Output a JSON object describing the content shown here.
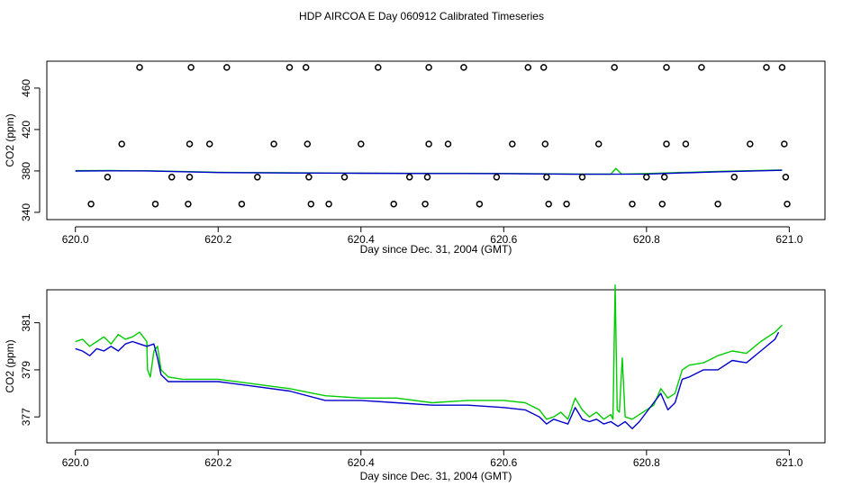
{
  "title": "HDP AIRCOA E  Day 060912  Calibrated Timeseries",
  "colors": {
    "green": "#00cc00",
    "blue": "#0000cc",
    "axis": "#000000",
    "points": "#000000"
  },
  "chart_data": [
    {
      "type": "scatter",
      "xlabel": "Day since Dec. 31, 2004 (GMT)",
      "ylabel": "CO2 (ppm)",
      "xlim": [
        619.96,
        621.05
      ],
      "ylim": [
        333,
        486
      ],
      "xticks": [
        "620.0",
        "620.2",
        "620.4",
        "620.6",
        "620.8",
        "621.0"
      ],
      "yticks": [
        "340",
        "380",
        "420",
        "460"
      ],
      "xtick_values": [
        620.0,
        620.2,
        620.4,
        620.6,
        620.8,
        621.0
      ],
      "ytick_values": [
        340,
        380,
        420,
        460
      ],
      "calibration_points": [
        [
          620.09,
          480
        ],
        [
          620.162,
          480
        ],
        [
          620.212,
          480
        ],
        [
          620.3,
          480
        ],
        [
          620.323,
          480
        ],
        [
          620.424,
          480
        ],
        [
          620.495,
          480
        ],
        [
          620.544,
          480
        ],
        [
          620.634,
          480
        ],
        [
          620.656,
          480
        ],
        [
          620.755,
          480
        ],
        [
          620.828,
          480
        ],
        [
          620.877,
          480
        ],
        [
          620.968,
          480
        ],
        [
          620.99,
          480
        ],
        [
          620.065,
          406
        ],
        [
          620.16,
          406
        ],
        [
          620.188,
          406
        ],
        [
          620.278,
          406
        ],
        [
          620.325,
          406
        ],
        [
          620.4,
          406
        ],
        [
          620.495,
          406
        ],
        [
          620.522,
          406
        ],
        [
          620.612,
          406
        ],
        [
          620.658,
          406
        ],
        [
          620.733,
          406
        ],
        [
          620.828,
          406
        ],
        [
          620.855,
          406
        ],
        [
          620.945,
          406
        ],
        [
          620.993,
          406
        ],
        [
          620.045,
          374
        ],
        [
          620.135,
          374
        ],
        [
          620.16,
          374
        ],
        [
          620.255,
          374
        ],
        [
          620.327,
          374
        ],
        [
          620.377,
          374
        ],
        [
          620.468,
          374
        ],
        [
          620.493,
          374
        ],
        [
          620.59,
          374
        ],
        [
          620.66,
          374
        ],
        [
          620.71,
          374
        ],
        [
          620.8,
          374
        ],
        [
          620.825,
          374
        ],
        [
          620.923,
          374
        ],
        [
          620.995,
          374
        ],
        [
          620.022,
          348
        ],
        [
          620.112,
          348
        ],
        [
          620.158,
          348
        ],
        [
          620.233,
          348
        ],
        [
          620.33,
          348
        ],
        [
          620.355,
          348
        ],
        [
          620.446,
          348
        ],
        [
          620.49,
          348
        ],
        [
          620.566,
          348
        ],
        [
          620.663,
          348
        ],
        [
          620.688,
          348
        ],
        [
          620.78,
          348
        ],
        [
          620.822,
          348
        ],
        [
          620.9,
          348
        ],
        [
          620.997,
          348
        ]
      ],
      "series": [
        {
          "color": "green",
          "x": [
            620.0,
            620.05,
            620.1,
            620.2,
            620.3,
            620.4,
            620.5,
            620.6,
            620.7,
            620.75,
            620.757,
            620.765,
            620.8,
            620.9,
            620.99
          ],
          "y": [
            380.3,
            380.4,
            380.2,
            378.6,
            378.2,
            377.9,
            377.7,
            377.6,
            377.0,
            376.9,
            382.5,
            377.0,
            377.5,
            379.5,
            381.0
          ]
        },
        {
          "color": "blue",
          "x": [
            620.0,
            620.05,
            620.1,
            620.2,
            620.3,
            620.4,
            620.5,
            620.6,
            620.7,
            620.8,
            620.9,
            620.99
          ],
          "y": [
            379.9,
            380.1,
            380.0,
            378.5,
            378.0,
            377.8,
            377.5,
            377.4,
            376.8,
            377.0,
            379.2,
            380.6
          ]
        }
      ]
    },
    {
      "type": "line",
      "xlabel": "Day since Dec. 31, 2004 (GMT)",
      "ylabel": "CO2 (ppm)",
      "xlim": [
        619.96,
        621.05
      ],
      "ylim": [
        375.9,
        382.4
      ],
      "xticks": [
        "620.0",
        "620.2",
        "620.4",
        "620.6",
        "620.8",
        "621.0"
      ],
      "yticks": [
        "377",
        "379",
        "381"
      ],
      "xtick_values": [
        620.0,
        620.2,
        620.4,
        620.6,
        620.8,
        621.0
      ],
      "ytick_values": [
        377,
        379,
        381
      ],
      "series": [
        {
          "color": "green",
          "x": [
            620.0,
            620.01,
            620.02,
            620.03,
            620.04,
            620.05,
            620.06,
            620.07,
            620.08,
            620.09,
            620.1,
            620.101,
            620.105,
            620.11,
            620.115,
            620.12,
            620.13,
            620.15,
            620.2,
            620.25,
            620.3,
            620.35,
            620.4,
            620.45,
            620.5,
            620.55,
            620.6,
            620.63,
            620.65,
            620.66,
            620.67,
            620.68,
            620.69,
            620.7,
            620.71,
            620.72,
            620.73,
            620.74,
            620.75,
            620.753,
            620.756,
            620.759,
            620.762,
            620.766,
            620.77,
            620.78,
            620.79,
            620.8,
            620.81,
            620.82,
            620.83,
            620.84,
            620.85,
            620.86,
            620.88,
            620.9,
            620.92,
            620.94,
            620.96,
            620.98,
            620.99
          ],
          "y": [
            380.2,
            380.3,
            380.0,
            380.2,
            380.4,
            380.1,
            380.5,
            380.3,
            380.4,
            380.6,
            380.2,
            379.0,
            378.7,
            379.8,
            380.0,
            379.0,
            378.7,
            378.6,
            378.6,
            378.4,
            378.2,
            377.9,
            377.8,
            377.8,
            377.6,
            377.7,
            377.7,
            377.6,
            377.3,
            376.9,
            377.0,
            377.2,
            376.9,
            377.8,
            377.3,
            377.0,
            377.2,
            376.9,
            377.1,
            376.9,
            382.6,
            377.3,
            377.2,
            379.5,
            377.0,
            376.9,
            377.1,
            377.3,
            377.5,
            378.2,
            377.8,
            378.0,
            379.0,
            379.2,
            379.3,
            379.6,
            379.8,
            379.7,
            380.2,
            380.6,
            380.9
          ]
        },
        {
          "color": "blue",
          "x": [
            620.0,
            620.01,
            620.02,
            620.03,
            620.04,
            620.05,
            620.06,
            620.07,
            620.08,
            620.09,
            620.1,
            620.11,
            620.115,
            620.12,
            620.13,
            620.15,
            620.2,
            620.25,
            620.3,
            620.35,
            620.4,
            620.45,
            620.5,
            620.55,
            620.6,
            620.63,
            620.65,
            620.66,
            620.67,
            620.68,
            620.69,
            620.7,
            620.71,
            620.72,
            620.73,
            620.74,
            620.75,
            620.76,
            620.77,
            620.78,
            620.79,
            620.8,
            620.81,
            620.82,
            620.83,
            620.84,
            620.85,
            620.86,
            620.88,
            620.9,
            620.92,
            620.94,
            620.96,
            620.98,
            620.985
          ],
          "y": [
            379.9,
            379.8,
            379.6,
            379.9,
            379.8,
            380.0,
            379.8,
            380.1,
            380.2,
            380.1,
            380.0,
            380.1,
            379.5,
            378.8,
            378.5,
            378.5,
            378.5,
            378.3,
            378.1,
            377.7,
            377.7,
            377.6,
            377.5,
            377.5,
            377.4,
            377.3,
            377.0,
            376.7,
            376.9,
            376.8,
            376.7,
            377.4,
            376.9,
            376.8,
            376.9,
            376.7,
            376.8,
            376.6,
            376.8,
            376.5,
            376.8,
            377.2,
            377.6,
            378.0,
            377.3,
            377.6,
            378.6,
            378.7,
            379.0,
            379.0,
            379.4,
            379.3,
            379.8,
            380.3,
            380.6
          ]
        }
      ]
    }
  ]
}
